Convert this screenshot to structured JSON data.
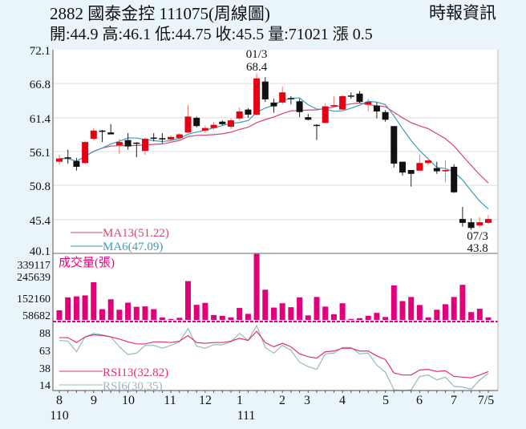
{
  "header": {
    "title": "2882  國泰金控 111075(周線圖)",
    "quote": "開:44.9 高:46.1 低:44.75 收:45.5 量:71021 漲 0.5",
    "source": "時報資訊"
  },
  "colors": {
    "up": "#e60012",
    "down": "#111111",
    "ma13": "#d9426f",
    "ma6": "#3c9cb8",
    "volume": "#e2007a",
    "rsi13": "#e0306f",
    "rsi6": "#93b9c2"
  },
  "chart_data": [
    {
      "type": "candlestick",
      "ylim": [
        40.1,
        72.1
      ],
      "yticks": [
        "72.1",
        "66.8",
        "61.4",
        "56.1",
        "50.8",
        "45.4",
        "40.1"
      ],
      "grid": true,
      "annotations": [
        {
          "label": "01/3",
          "value": "68.4"
        },
        {
          "label": "07/3",
          "value": "43.8"
        }
      ],
      "legend": [
        "MA13(51.22)",
        "MA6(47.09)"
      ],
      "ohlc": [
        [
          54.5,
          55.6,
          54.0,
          55.0
        ],
        [
          55.2,
          56.4,
          54.2,
          55.0
        ],
        [
          54.6,
          55.1,
          53.1,
          53.7
        ],
        [
          54.3,
          57.8,
          54.1,
          57.6
        ],
        [
          58.1,
          59.8,
          57.9,
          59.4
        ],
        [
          59.4,
          59.5,
          57.6,
          59.2
        ],
        [
          59.1,
          60.4,
          58.8,
          58.8
        ],
        [
          57.1,
          58.1,
          55.7,
          57.6
        ],
        [
          57.9,
          59.0,
          56.4,
          56.9
        ],
        [
          57.5,
          57.6,
          55.2,
          57.4
        ],
        [
          56.2,
          58.3,
          55.6,
          58.1
        ],
        [
          58.3,
          59.0,
          57.7,
          58.1
        ],
        [
          58.2,
          59.0,
          57.4,
          58.0
        ],
        [
          58.0,
          58.6,
          57.5,
          58.4
        ],
        [
          58.2,
          59.0,
          58.0,
          58.8
        ],
        [
          59.1,
          63.4,
          59.0,
          61.6
        ],
        [
          61.4,
          61.6,
          59.9,
          60.1
        ],
        [
          59.4,
          60.2,
          59.0,
          59.8
        ],
        [
          59.8,
          60.7,
          59.5,
          60.3
        ],
        [
          60.8,
          61.0,
          60.2,
          60.4
        ],
        [
          60.0,
          61.3,
          59.6,
          61.0
        ],
        [
          61.3,
          63.0,
          61.0,
          62.4
        ],
        [
          62.7,
          62.9,
          61.4,
          61.9
        ],
        [
          61.9,
          68.4,
          61.8,
          67.6
        ],
        [
          67.1,
          67.8,
          63.9,
          64.3
        ],
        [
          63.8,
          64.4,
          62.2,
          63.2
        ],
        [
          63.8,
          66.3,
          63.5,
          65.4
        ],
        [
          64.5,
          64.8,
          63.5,
          64.4
        ],
        [
          64.0,
          64.4,
          61.5,
          62.3
        ],
        [
          61.5,
          62.0,
          61.0,
          61.1
        ],
        [
          60.3,
          60.4,
          57.9,
          60.2
        ],
        [
          60.6,
          63.7,
          60.5,
          63.2
        ],
        [
          63.2,
          64.8,
          63.1,
          63.4
        ],
        [
          62.7,
          65.0,
          62.6,
          64.8
        ],
        [
          64.9,
          65.4,
          64.4,
          64.8
        ],
        [
          65.2,
          65.6,
          63.7,
          63.9
        ],
        [
          63.5,
          64.4,
          62.4,
          63.9
        ],
        [
          63.3,
          63.8,
          61.3,
          62.4
        ],
        [
          62.3,
          62.6,
          60.8,
          61.1
        ],
        [
          60.1,
          60.1,
          53.6,
          54.2
        ],
        [
          54.5,
          54.5,
          52.3,
          52.8
        ],
        [
          53.2,
          53.2,
          50.6,
          52.6
        ],
        [
          53.1,
          55.6,
          53.1,
          54.3
        ],
        [
          54.3,
          55.0,
          54.0,
          54.7
        ],
        [
          53.5,
          54.5,
          52.6,
          53.0
        ],
        [
          53.0,
          54.7,
          51.3,
          53.2
        ],
        [
          53.7,
          54.1,
          49.6,
          49.7
        ],
        [
          45.5,
          47.4,
          44.3,
          44.9
        ],
        [
          45.0,
          45.6,
          43.8,
          44.1
        ],
        [
          44.5,
          45.8,
          44.2,
          45.0
        ],
        [
          44.9,
          46.1,
          44.75,
          45.5
        ]
      ],
      "ma_periods": [
        13,
        6
      ]
    },
    {
      "type": "bar",
      "title": "成交量(張)",
      "ylim": [
        0,
        339117
      ],
      "yticks": [
        "339117",
        "245639",
        "152160",
        "58682"
      ],
      "values": [
        49000,
        115000,
        120000,
        125000,
        192000,
        55000,
        105000,
        52000,
        88000,
        67000,
        69000,
        55000,
        13000,
        5000,
        11000,
        198000,
        77000,
        87000,
        25000,
        21000,
        13000,
        61000,
        31000,
        339117,
        154000,
        63000,
        85000,
        65000,
        115000,
        23000,
        117000,
        68000,
        29000,
        85000,
        5000,
        9000,
        21000,
        36000,
        15000,
        176000,
        96000,
        117000,
        76000,
        13000,
        52000,
        80000,
        117000,
        179000,
        40000,
        57000,
        13000
      ]
    },
    {
      "type": "line",
      "ylim": [
        5,
        100
      ],
      "yticks": [
        "88",
        "63",
        "38",
        "14"
      ],
      "series": [
        {
          "name": "RSI13(32.82)",
          "values": [
            81,
            81,
            74,
            82,
            85,
            84,
            82,
            79,
            75,
            72,
            72,
            75,
            75,
            74,
            76,
            84,
            74,
            73,
            74,
            74,
            76,
            80,
            77,
            90,
            74,
            68,
            73,
            68,
            58,
            54,
            52,
            61,
            62,
            66,
            66,
            62,
            62,
            55,
            50,
            31,
            28,
            28,
            35,
            36,
            33,
            34,
            26,
            25,
            24,
            28,
            32.82
          ]
        },
        {
          "name": "RSI6(30.35)",
          "values": [
            77,
            76,
            61,
            82,
            87,
            85,
            82,
            68,
            57,
            59,
            70,
            70,
            66,
            70,
            75,
            94,
            69,
            66,
            71,
            71,
            75,
            87,
            77,
            98,
            67,
            59,
            70,
            63,
            46,
            40,
            36,
            58,
            59,
            67,
            67,
            58,
            59,
            42,
            32,
            7,
            5,
            7,
            26,
            28,
            21,
            25,
            12,
            11,
            8,
            21,
            30.35
          ]
        }
      ]
    }
  ],
  "xaxis": {
    "months": [
      "8",
      "9",
      "10",
      "11",
      "12",
      "1",
      "2",
      "3",
      "4",
      "5",
      "6",
      "7",
      "7/5"
    ],
    "years": [
      "110",
      "111"
    ]
  }
}
